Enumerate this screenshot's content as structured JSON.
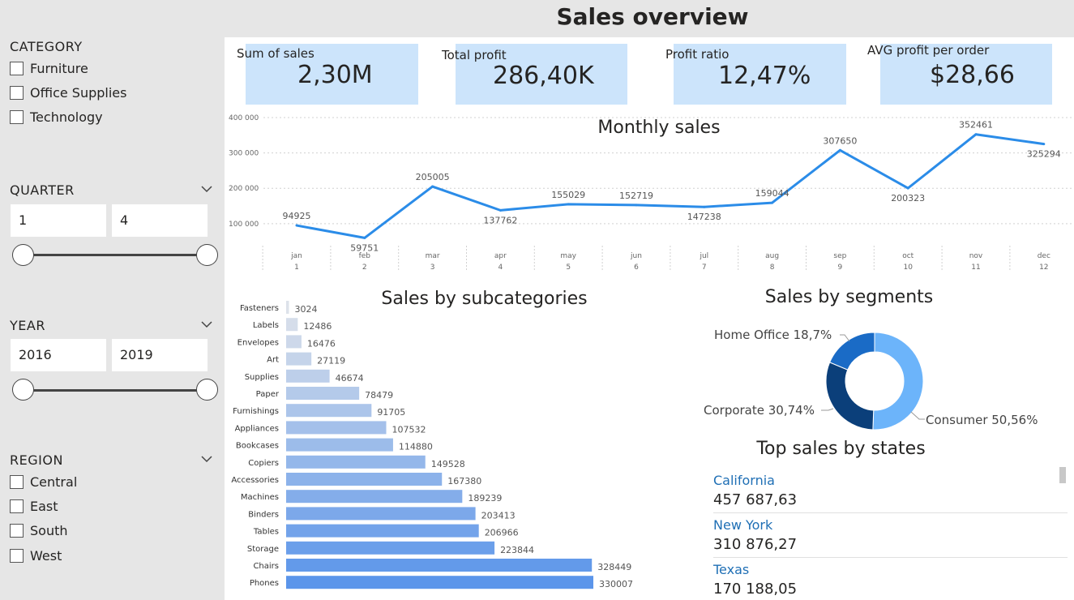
{
  "header": {
    "title": "Sales overview"
  },
  "filters": {
    "category": {
      "title": "CATEGORY",
      "items": [
        "Furniture",
        "Office Supplies",
        "Technology"
      ]
    },
    "quarter": {
      "title": "QUARTER",
      "from": "1",
      "to": "4"
    },
    "year": {
      "title": "YEAR",
      "from": "2016",
      "to": "2019"
    },
    "region": {
      "title": "REGION",
      "items": [
        "Central",
        "East",
        "South",
        "West"
      ]
    }
  },
  "kpis": [
    {
      "label": "Sum of sales",
      "value": "2,30M"
    },
    {
      "label": "Total profit",
      "value": "286,40K"
    },
    {
      "label": "Profit ratio",
      "value": "12,47%"
    },
    {
      "label": "AVG profit per order",
      "value": "$28,66"
    }
  ],
  "colors": {
    "line": "#2b8ce8",
    "kpi_card": "#cce4fb",
    "bar_light": "#dde2ea",
    "bar_dark": "#5b95ea",
    "donut_consumer": "#6cb4fa",
    "donut_corporate": "#0b3f7a",
    "donut_home_office": "#1a6bc6",
    "state_name": "#1f6fb5"
  },
  "chart_data": [
    {
      "type": "line",
      "title": "Monthly sales",
      "categories": [
        "jan",
        "feb",
        "mar",
        "apr",
        "may",
        "jun",
        "jul",
        "aug",
        "sep",
        "oct",
        "nov",
        "dec"
      ],
      "sub_categories": [
        "1",
        "2",
        "3",
        "4",
        "5",
        "6",
        "7",
        "8",
        "9",
        "10",
        "11",
        "12"
      ],
      "values": [
        94925,
        59751,
        205005,
        137762,
        155029,
        152719,
        147238,
        159044,
        307650,
        200323,
        352461,
        325294
      ],
      "y_ticks": [
        "100 000",
        "200 000",
        "300 000",
        "400 000"
      ],
      "ylim": [
        40000,
        400000
      ],
      "grid": true
    },
    {
      "type": "bar",
      "orientation": "horizontal",
      "title": "Sales by subcategories",
      "categories": [
        "Fasteners",
        "Labels",
        "Envelopes",
        "Art",
        "Supplies",
        "Paper",
        "Furnishings",
        "Appliances",
        "Bookcases",
        "Copiers",
        "Accessories",
        "Machines",
        "Binders",
        "Tables",
        "Storage",
        "Chairs",
        "Phones"
      ],
      "values": [
        3024,
        12486,
        16476,
        27119,
        46674,
        78479,
        91705,
        107532,
        114880,
        149528,
        167380,
        189239,
        203413,
        206966,
        223844,
        328449,
        330007
      ]
    },
    {
      "type": "pie",
      "style": "donut",
      "title": "Sales by segments",
      "labels": [
        "Consumer 50,56%",
        "Corporate 30,74%",
        "Home Office 18,7%"
      ],
      "values": [
        50.56,
        30.74,
        18.7
      ]
    },
    {
      "type": "table",
      "title": "Top sales by states",
      "rows": [
        {
          "state": "California",
          "sales": "457 687,63"
        },
        {
          "state": "New York",
          "sales": "310 876,27"
        },
        {
          "state": "Texas",
          "sales": "170 188,05"
        }
      ]
    }
  ]
}
